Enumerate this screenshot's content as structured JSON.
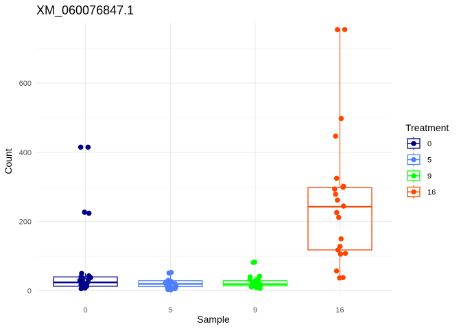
{
  "chart_data": {
    "type": "box",
    "title": "XM_060076847.1",
    "xlabel": "Sample",
    "ylabel": "Count",
    "categories": [
      "0",
      "5",
      "9",
      "16"
    ],
    "ylim": [
      -15,
      775
    ],
    "yticks": [
      0,
      200,
      400,
      600
    ],
    "grid": true,
    "legend": {
      "title": "Treatment",
      "position": "right",
      "entries": [
        "0",
        "5",
        "9",
        "16"
      ]
    },
    "series": [
      {
        "name": "0",
        "color": "#00008B",
        "box": {
          "q1": 13,
          "median": 24,
          "q3": 40,
          "whisker_low": 5,
          "whisker_high": 50
        },
        "points": [
          415,
          415,
          227,
          224,
          50,
          43,
          40,
          38,
          36,
          33,
          30,
          26,
          22,
          19,
          17,
          15,
          13,
          11,
          8,
          6
        ]
      },
      {
        "name": "5",
        "color": "#4F7FFF",
        "box": {
          "q1": 12,
          "median": 20,
          "q3": 29,
          "whisker_low": 3,
          "whisker_high": 51
        },
        "points": [
          53,
          51,
          30,
          27,
          25,
          22,
          20,
          18,
          16,
          14,
          12,
          10,
          8,
          6,
          4,
          3
        ]
      },
      {
        "name": "9",
        "color": "#00FF00",
        "box": {
          "q1": 14,
          "median": 19,
          "q3": 29,
          "whisker_low": 6,
          "whisker_high": 42
        },
        "points": [
          83,
          82,
          42,
          40,
          36,
          32,
          29,
          26,
          23,
          21,
          19,
          17,
          15,
          13,
          11,
          9,
          7
        ]
      },
      {
        "name": "16",
        "color": "#FF4500",
        "box": {
          "q1": 118,
          "median": 243,
          "q3": 298,
          "whisker_low": 37,
          "whisker_high": 755
        },
        "points": [
          755,
          755,
          498,
          447,
          325,
          302,
          299,
          294,
          279,
          262,
          245,
          226,
          212,
          150,
          128,
          118,
          108,
          106,
          57,
          38,
          37
        ]
      }
    ]
  }
}
